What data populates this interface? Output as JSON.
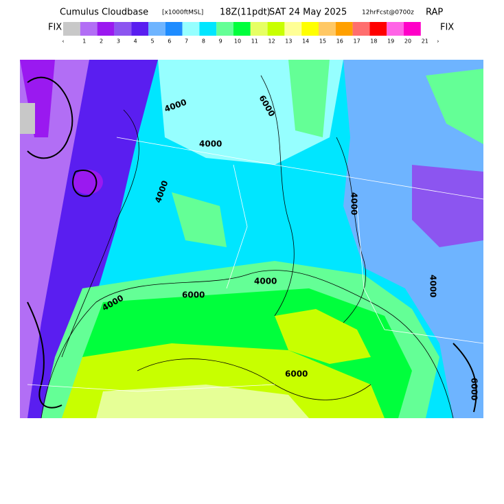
{
  "header": {
    "title": "Cumulus Cloudbase",
    "units": "[x1000ftMSL]",
    "valid_time": "18Z(11pdt)",
    "date": "SAT 24 May 2025",
    "forecast": "12hrFcst@0700z",
    "model": "RAP"
  },
  "colorbar": {
    "fix_left": "FIX",
    "fix_right": "FIX",
    "colors": [
      "#c8c8c8",
      "#b26ef5",
      "#9a19f0",
      "#8c55f0",
      "#5a1ef0",
      "#6eb4ff",
      "#1e8cff",
      "#96ffff",
      "#00e6ff",
      "#64ff96",
      "#00ff3c",
      "#e6ff64",
      "#c8ff00",
      "#ffff96",
      "#ffff00",
      "#ffc864",
      "#ffa000",
      "#ff6e6e",
      "#ff0000",
      "#ff64e6",
      "#ff00c8"
    ],
    "labels": [
      "‹",
      "1",
      "2",
      "3",
      "4",
      "5",
      "6",
      "7",
      "8",
      "9",
      "10",
      "11",
      "12",
      "13",
      "14",
      "15",
      "16",
      "17",
      "18",
      "19",
      "20",
      "21",
      "›"
    ]
  },
  "map": {
    "contour_labels": [
      "4000",
      "4000",
      "4000",
      "4000",
      "4000",
      "4000",
      "6000",
      "6000",
      "6000",
      "6000",
      "4000"
    ]
  }
}
